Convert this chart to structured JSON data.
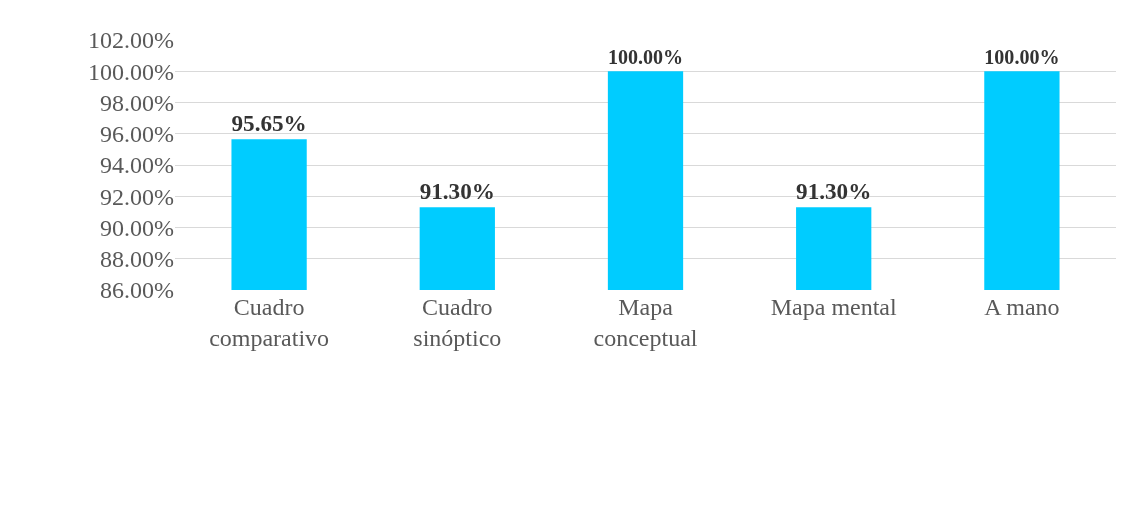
{
  "chart_data": {
    "type": "bar",
    "categories": [
      "Cuadro comparativo",
      "Cuadro sinóptico",
      "Mapa conceptual",
      "Mapa mental",
      "A mano"
    ],
    "values": [
      95.65,
      91.3,
      100.0,
      91.3,
      100.0
    ],
    "value_labels": [
      "95.65%",
      "91.30%",
      "100.00%",
      "91.30%",
      "100.00%"
    ],
    "color": "#00ccff",
    "ylim": [
      86,
      102
    ],
    "yticks": [
      {
        "value": 86,
        "label": "86.00%"
      },
      {
        "value": 88,
        "label": "88.00%"
      },
      {
        "value": 90,
        "label": "90.00%"
      },
      {
        "value": 92,
        "label": "92.00%"
      },
      {
        "value": 94,
        "label": "94.00%"
      },
      {
        "value": 96,
        "label": "96.00%"
      },
      {
        "value": 98,
        "label": "98.00%"
      },
      {
        "value": 100,
        "label": "100.00%"
      },
      {
        "value": 102,
        "label": "102.00%"
      }
    ],
    "grid": "y"
  }
}
